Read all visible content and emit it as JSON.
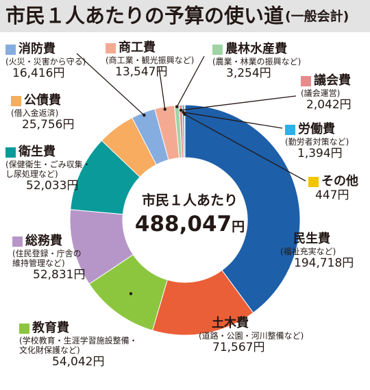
{
  "title": "市民１人あたりの予算の使い道",
  "subtitle": "(一般会計)",
  "center": {
    "label": "市民１人あたり",
    "value": "488,047",
    "unit": "円"
  },
  "chart_data": {
    "type": "pie",
    "title": "市民１人あたりの予算の使い道",
    "subtitle": "(一般会計)",
    "total": 488047,
    "unit": "円",
    "slices": [
      {
        "name": "民生費",
        "desc": "(福祉充実など)",
        "value": 194718,
        "display": "194,718円",
        "color": "#1d5fa9"
      },
      {
        "name": "土木費",
        "desc": "(道路・公園・河川整備など)",
        "value": 71567,
        "display": "71,567円",
        "color": "#ea5f37"
      },
      {
        "name": "教育費",
        "desc": "(学校教育・生涯学習施設整備・文化財保護など)",
        "desc_lines": [
          "(学校教育・生涯学習施設整備・",
          "文化財保護など)"
        ],
        "value": 54042,
        "display": "54,042円",
        "color": "#8cc63f"
      },
      {
        "name": "総務費",
        "desc": "(住民登録・庁舎の維持管理など)",
        "desc_lines": [
          "(住民登録・庁舎の",
          "維持管理など)"
        ],
        "value": 52831,
        "display": "52,831円",
        "color": "#b696c8"
      },
      {
        "name": "衛生費",
        "desc": "(保健衛生・ごみ収集・し尿処理など)",
        "desc_lines": [
          "(保健衛生・ごみ収集・",
          "し尿処理など)"
        ],
        "value": 52033,
        "display": "52,033円",
        "color": "#0b9a9a"
      },
      {
        "name": "公債費",
        "desc": "(借入金返済)",
        "value": 25756,
        "display": "25,756円",
        "color": "#f7ac5f"
      },
      {
        "name": "消防費",
        "desc": "(火災・災害から守る)",
        "value": 16416,
        "display": "16,416円",
        "color": "#86ade0"
      },
      {
        "name": "商工費",
        "desc": "(商工業・観光振興など)",
        "value": 13547,
        "display": "13,547円",
        "color": "#f4aa92"
      },
      {
        "name": "農林水産費",
        "desc": "(農業・林業の振興など)",
        "value": 3254,
        "display": "3,254円",
        "color": "#9fd4a5"
      },
      {
        "name": "議会費",
        "desc": "(議会運営)",
        "value": 2042,
        "display": "2,042円",
        "color": "#e78a8a"
      },
      {
        "name": "労働費",
        "desc": "(勤労者対策など)",
        "value": 1394,
        "display": "1,394円",
        "color": "#2ab1e9"
      },
      {
        "name": "その他",
        "desc": "",
        "value": 447,
        "display": "447円",
        "color": "#f3c400"
      }
    ]
  }
}
